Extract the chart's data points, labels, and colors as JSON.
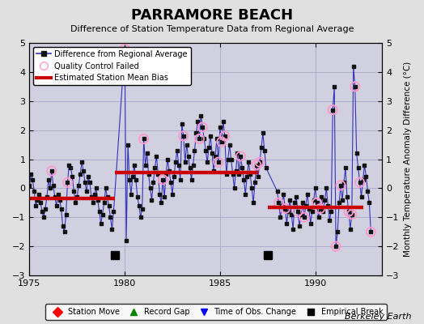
{
  "title": "PARRAMORE BEACH",
  "subtitle": "Difference of Station Temperature Data from Regional Average",
  "ylabel_right": "Monthly Temperature Anomaly Difference (°C)",
  "credit": "Berkeley Earth",
  "xlim": [
    1975,
    1993.5
  ],
  "ylim": [
    -3,
    5
  ],
  "yticks": [
    -3,
    -2,
    -1,
    0,
    1,
    2,
    3,
    4,
    5
  ],
  "xticks": [
    1975,
    1980,
    1985,
    1990
  ],
  "background_color": "#e0e0e0",
  "plot_bg_color": "#d0d0e0",
  "empirical_breaks": [
    1979.5,
    1987.5
  ],
  "segments": [
    {
      "x_start": 1975.0,
      "x_end": 1979.5,
      "bias": -0.35
    },
    {
      "x_start": 1979.5,
      "x_end": 1987.0,
      "bias": 0.55
    },
    {
      "x_start": 1987.5,
      "x_end": 1992.5,
      "bias": -0.65
    }
  ],
  "times": [
    1975.0,
    1975.083,
    1975.167,
    1975.25,
    1975.333,
    1975.417,
    1975.5,
    1975.583,
    1975.667,
    1975.75,
    1975.833,
    1975.917,
    1976.0,
    1976.083,
    1976.167,
    1976.25,
    1976.333,
    1976.417,
    1976.5,
    1976.583,
    1976.667,
    1976.75,
    1976.833,
    1976.917,
    1977.0,
    1977.083,
    1977.167,
    1977.25,
    1977.333,
    1977.417,
    1977.5,
    1977.583,
    1977.667,
    1977.75,
    1977.833,
    1977.917,
    1978.0,
    1978.083,
    1978.167,
    1978.25,
    1978.333,
    1978.417,
    1978.5,
    1978.583,
    1978.667,
    1978.75,
    1978.833,
    1978.917,
    1979.0,
    1979.083,
    1979.167,
    1979.25,
    1979.333,
    1979.417,
    1980.0,
    1980.083,
    1980.167,
    1980.25,
    1980.333,
    1980.417,
    1980.5,
    1980.583,
    1980.667,
    1980.75,
    1980.833,
    1980.917,
    1981.0,
    1981.083,
    1981.167,
    1981.25,
    1981.333,
    1981.417,
    1981.5,
    1981.583,
    1981.667,
    1981.75,
    1981.833,
    1981.917,
    1982.0,
    1982.083,
    1982.167,
    1982.25,
    1982.333,
    1982.417,
    1982.5,
    1982.583,
    1982.667,
    1982.75,
    1982.833,
    1982.917,
    1983.0,
    1983.083,
    1983.167,
    1983.25,
    1983.333,
    1983.417,
    1983.5,
    1983.583,
    1983.667,
    1983.75,
    1983.833,
    1983.917,
    1984.0,
    1984.083,
    1984.167,
    1984.25,
    1984.333,
    1984.417,
    1984.5,
    1984.583,
    1984.667,
    1984.75,
    1984.833,
    1984.917,
    1985.0,
    1985.083,
    1985.167,
    1985.25,
    1985.333,
    1985.417,
    1985.5,
    1985.583,
    1985.667,
    1985.75,
    1985.833,
    1985.917,
    1986.0,
    1986.083,
    1986.167,
    1986.25,
    1986.333,
    1986.417,
    1986.5,
    1986.583,
    1986.667,
    1986.75,
    1986.833,
    1986.917,
    1987.0,
    1987.083,
    1987.167,
    1987.25,
    1987.333,
    1987.417,
    1988.0,
    1988.083,
    1988.167,
    1988.25,
    1988.333,
    1988.417,
    1988.5,
    1988.583,
    1988.667,
    1988.75,
    1988.833,
    1988.917,
    1989.0,
    1989.083,
    1989.167,
    1989.25,
    1989.333,
    1989.417,
    1989.5,
    1989.583,
    1989.667,
    1989.75,
    1989.833,
    1989.917,
    1990.0,
    1990.083,
    1990.167,
    1990.25,
    1990.333,
    1990.417,
    1990.5,
    1990.583,
    1990.667,
    1990.75,
    1990.833,
    1990.917,
    1991.0,
    1991.083,
    1991.167,
    1991.25,
    1991.333,
    1991.417,
    1991.5,
    1991.583,
    1991.667,
    1991.75,
    1991.833,
    1991.917,
    1992.0,
    1992.083,
    1992.167,
    1992.25,
    1992.333,
    1992.417,
    1992.5,
    1992.583,
    1992.667,
    1992.75,
    1992.833,
    1992.917
  ],
  "values": [
    0.1,
    0.5,
    0.3,
    -0.1,
    -0.6,
    -0.4,
    -0.2,
    -0.5,
    -0.8,
    -1.0,
    -0.7,
    -0.3,
    0.3,
    0.0,
    0.6,
    0.1,
    -0.3,
    -0.6,
    -0.2,
    -0.4,
    -0.7,
    -1.3,
    -1.5,
    -0.9,
    0.2,
    0.8,
    0.7,
    0.4,
    -0.1,
    -0.5,
    -0.3,
    0.1,
    0.5,
    0.9,
    0.6,
    0.2,
    -0.1,
    0.4,
    0.2,
    -0.3,
    -0.5,
    -0.2,
    0.0,
    -0.4,
    -0.8,
    -1.2,
    -0.9,
    -0.5,
    0.0,
    -0.3,
    -0.6,
    -1.0,
    -1.4,
    -0.8,
    4.8,
    -1.8,
    1.5,
    0.3,
    -0.2,
    0.4,
    0.8,
    0.3,
    -0.3,
    -0.6,
    -1.0,
    -0.7,
    1.7,
    0.8,
    1.2,
    0.5,
    0.0,
    -0.4,
    0.2,
    0.7,
    1.1,
    0.5,
    -0.2,
    -0.5,
    0.3,
    -0.3,
    0.5,
    1.0,
    0.6,
    0.2,
    -0.2,
    0.4,
    0.9,
    1.3,
    0.8,
    0.3,
    2.2,
    1.8,
    0.9,
    1.5,
    1.1,
    0.7,
    0.3,
    0.8,
    1.3,
    1.9,
    2.3,
    1.7,
    2.5,
    2.1,
    1.7,
    1.3,
    0.9,
    1.4,
    1.8,
    1.2,
    0.6,
    1.1,
    1.7,
    0.9,
    2.1,
    1.6,
    2.3,
    1.8,
    0.5,
    1.0,
    1.5,
    1.0,
    0.5,
    0.0,
    0.6,
    1.2,
    0.5,
    1.1,
    0.7,
    0.3,
    -0.2,
    0.4,
    0.9,
    0.5,
    0.0,
    -0.5,
    0.2,
    0.8,
    0.4,
    0.9,
    1.4,
    1.9,
    1.3,
    0.7,
    -0.1,
    -0.5,
    -1.0,
    -0.6,
    -0.2,
    -0.7,
    -1.2,
    -0.8,
    -0.4,
    -0.9,
    -1.4,
    -0.5,
    -0.3,
    -0.8,
    -1.3,
    -0.9,
    -0.5,
    -1.0,
    -0.6,
    -0.2,
    -0.7,
    -1.2,
    -0.8,
    -0.4,
    0.0,
    -0.5,
    -1.0,
    -0.7,
    -0.3,
    -0.8,
    -0.4,
    0.0,
    -0.6,
    -1.1,
    -0.8,
    2.7,
    3.5,
    -2.0,
    -1.5,
    -0.5,
    0.1,
    -0.4,
    0.2,
    0.7,
    -0.3,
    -0.8,
    -1.4,
    -0.9,
    4.2,
    3.5,
    1.2,
    0.7,
    0.2,
    -0.3,
    0.3,
    0.8,
    0.4,
    -0.1,
    -0.5,
    -1.5
  ],
  "qc_failed_times": [
    1976.167,
    1977.0,
    1980.0,
    1981.0,
    1982.0,
    1983.083,
    1983.917,
    1984.083,
    1984.917,
    1985.083,
    1985.25,
    1986.083,
    1986.917,
    1987.083,
    1988.083,
    1988.417,
    1989.083,
    1989.417,
    1990.083,
    1990.25,
    1990.917,
    1991.083,
    1991.333,
    1991.75,
    1991.917,
    1992.083,
    1992.333,
    1992.917
  ],
  "line_color": "#3333bb",
  "marker_color": "#111111",
  "qc_color": "#ff99cc",
  "bias_color": "#cc0000",
  "grid_color": "#aaaacc"
}
